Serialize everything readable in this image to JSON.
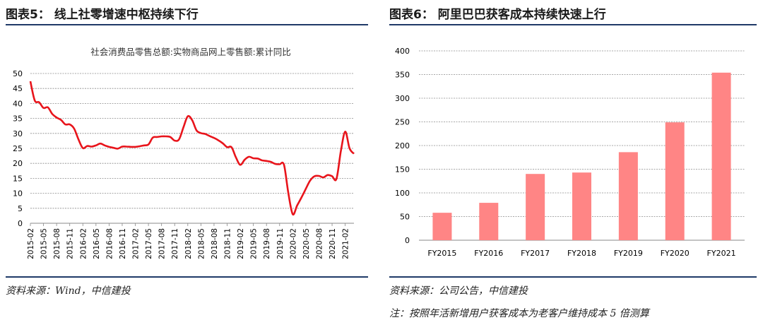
{
  "left_panel": {
    "title": "图表5： 线上社零增速中枢持续下行",
    "source": "资料来源：Wind，中信建投"
  },
  "right_panel": {
    "title": "图表6： 阿里巴巴获客成本持续快速上行",
    "source": "资料来源：公司公告，中信建投",
    "note": "注：按照年活新增用户获客成本为老客户维持成本 5 倍测算"
  },
  "colors": {
    "line": "#e8141b",
    "bar": "#ff8585",
    "grid": "#8c8c8c",
    "rule": "#1f3a68"
  },
  "chart_data": [
    {
      "type": "line",
      "title": "社会消费品零售总额:实物商品网上零售额:累计同比",
      "xlabel": "",
      "ylabel": "",
      "ylim": [
        0,
        50
      ],
      "yticks": [
        0,
        5,
        10,
        15,
        20,
        25,
        30,
        35,
        40,
        45,
        50
      ],
      "grid": true,
      "x_tick_labels": [
        "2015-02",
        "2015-05",
        "2015-08",
        "2015-11",
        "2016-02",
        "2016-05",
        "2016-08",
        "2016-11",
        "2017-02",
        "2017-05",
        "2017-08",
        "2017-11",
        "2018-02",
        "2018-05",
        "2018-08",
        "2018-11",
        "2019-02",
        "2019-05",
        "2019-08",
        "2019-11",
        "2020-02",
        "2020-05",
        "2020-08",
        "2020-11",
        "2021-02"
      ],
      "x": [
        "2015-02",
        "2015-03",
        "2015-04",
        "2015-05",
        "2015-06",
        "2015-07",
        "2015-08",
        "2015-09",
        "2015-10",
        "2015-11",
        "2015-12",
        "2016-01",
        "2016-02",
        "2016-03",
        "2016-04",
        "2016-05",
        "2016-06",
        "2016-07",
        "2016-08",
        "2016-09",
        "2016-10",
        "2016-11",
        "2016-12",
        "2017-01",
        "2017-02",
        "2017-03",
        "2017-04",
        "2017-05",
        "2017-06",
        "2017-07",
        "2017-08",
        "2017-09",
        "2017-10",
        "2017-11",
        "2017-12",
        "2018-01",
        "2018-02",
        "2018-03",
        "2018-04",
        "2018-05",
        "2018-06",
        "2018-07",
        "2018-08",
        "2018-09",
        "2018-10",
        "2018-11",
        "2018-12",
        "2019-01",
        "2019-02",
        "2019-03",
        "2019-04",
        "2019-05",
        "2019-06",
        "2019-07",
        "2019-08",
        "2019-09",
        "2019-10",
        "2019-11",
        "2019-12",
        "2020-01",
        "2020-02",
        "2020-03",
        "2020-04",
        "2020-05",
        "2020-06",
        "2020-07",
        "2020-08",
        "2020-09",
        "2020-10",
        "2020-11",
        "2020-12",
        "2021-01",
        "2021-02",
        "2021-03",
        "2021-04"
      ],
      "series": [
        {
          "values": [
            47.4,
            41.0,
            40.4,
            38.5,
            38.7,
            36.5,
            35.3,
            34.5,
            33.0,
            33.0,
            31.6,
            28.0,
            25.1,
            25.8,
            25.6,
            26.0,
            26.6,
            26.0,
            25.5,
            25.2,
            24.9,
            25.6,
            25.6,
            25.5,
            25.5,
            25.7,
            26.0,
            26.3,
            28.6,
            28.8,
            29.0,
            29.0,
            28.8,
            27.6,
            28.0,
            32.0,
            35.7,
            34.4,
            31.0,
            30.1,
            29.8,
            29.1,
            28.5,
            27.7,
            26.7,
            25.4,
            25.4,
            22.0,
            19.5,
            21.2,
            22.2,
            21.7,
            21.6,
            21.0,
            20.8,
            20.5,
            19.8,
            19.7,
            19.5,
            10.0,
            3.0,
            5.9,
            8.6,
            11.5,
            14.3,
            15.7,
            15.8,
            15.3,
            16.1,
            15.7,
            14.8,
            24.0,
            30.6,
            25.0,
            23.2
          ]
        }
      ]
    },
    {
      "type": "bar",
      "title": "",
      "xlabel": "",
      "ylabel": "",
      "ylim": [
        0,
        400
      ],
      "yticks": [
        0,
        50,
        100,
        150,
        200,
        250,
        300,
        350,
        400
      ],
      "grid": true,
      "categories": [
        "FY2015",
        "FY2016",
        "FY2017",
        "FY2018",
        "FY2019",
        "FY2020",
        "FY2021"
      ],
      "values": [
        58,
        79,
        140,
        143,
        186,
        249,
        354
      ]
    }
  ]
}
